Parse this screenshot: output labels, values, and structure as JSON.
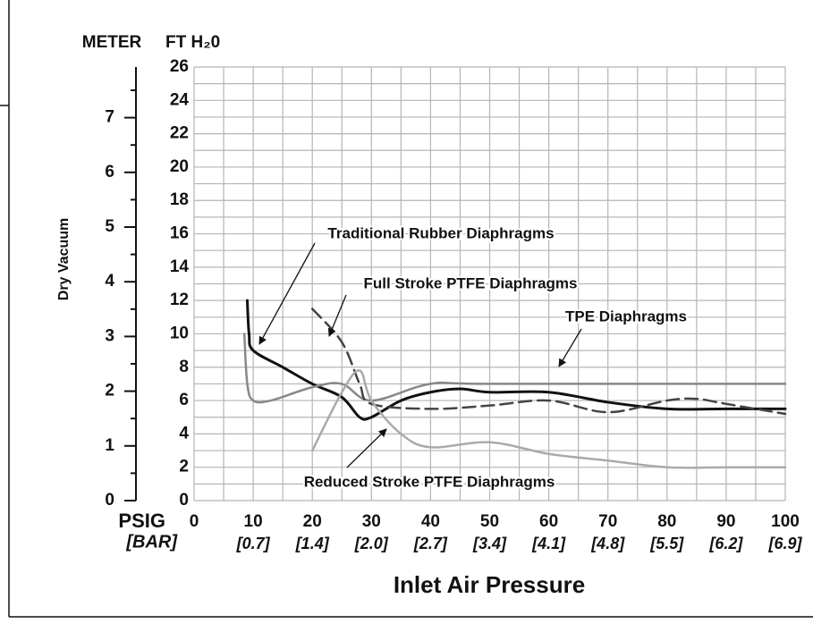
{
  "chart_data": {
    "type": "line",
    "y_label": "Dry Vacuum",
    "y_unit_label": "FT H₂0",
    "y2_unit_label": "METER",
    "x_label": "Inlet Air Pressure",
    "x_unit_label": "PSIG",
    "x_bar_unit_label": "[BAR]",
    "xlim": [
      0,
      100
    ],
    "xticks": [
      0,
      10,
      20,
      30,
      40,
      50,
      60,
      70,
      80,
      90,
      100
    ],
    "x_bar_labels": [
      null,
      "[0.7]",
      "[1.4]",
      "[2.0]",
      "[2.7]",
      "[3.4]",
      "[4.1]",
      "[4.8]",
      "[5.5]",
      "[6.2]",
      "[6.9]"
    ],
    "xminor_ticks": [
      5,
      15,
      25,
      35,
      45,
      55,
      65,
      75,
      85,
      95
    ],
    "ylim": [
      0,
      26
    ],
    "yticks": [
      0,
      2,
      4,
      6,
      8,
      10,
      12,
      14,
      16,
      18,
      20,
      22,
      24,
      26
    ],
    "yminor_ticks": [
      1,
      3,
      5,
      7,
      9,
      11,
      13,
      15,
      17,
      19,
      21,
      23,
      25
    ],
    "y2lim": [
      0,
      7.925
    ],
    "y2ticks": [
      0,
      1,
      2,
      3,
      4,
      5,
      6,
      7
    ],
    "y2minor_ticks": [
      0.5,
      1.5,
      2.5,
      3.5,
      4.5,
      5.5,
      6.5,
      7.5
    ],
    "grid": true,
    "series": [
      {
        "name": "Traditional Rubber Diaphragms",
        "color": "#111111",
        "width": 3,
        "dashed": false,
        "x": [
          9,
          9.3,
          10,
          15,
          20,
          25,
          28,
          30,
          35,
          40,
          45,
          50,
          60,
          70,
          80,
          90,
          100
        ],
        "values": [
          12,
          10,
          9,
          8,
          7,
          6.2,
          5,
          5,
          6,
          6.5,
          6.7,
          6.5,
          6.5,
          5.9,
          5.5,
          5.5,
          5.5
        ]
      },
      {
        "name": "TPE Diaphragms",
        "color": "#888888",
        "width": 2.5,
        "dashed": false,
        "x": [
          8.5,
          9,
          10,
          13,
          20,
          25,
          30,
          40,
          50,
          100
        ],
        "values": [
          10,
          7,
          6,
          6,
          6.8,
          7,
          6,
          7,
          7,
          7
        ]
      },
      {
        "name": "Full Stroke PTFE Diaphragms",
        "color": "#444444",
        "width": 2.5,
        "dashed": true,
        "x": [
          20,
          25,
          28,
          30,
          40,
          50,
          60,
          70,
          80,
          85,
          90,
          100
        ],
        "values": [
          11.5,
          9.5,
          7,
          5.8,
          5.5,
          5.7,
          6,
          5.3,
          6,
          6.1,
          5.8,
          5.2
        ]
      },
      {
        "name": "Reduced Stroke PTFE Diaphragms",
        "color": "#aaaaaa",
        "width": 2.5,
        "dashed": false,
        "x": [
          20,
          25,
          28,
          30,
          35,
          40,
          50,
          60,
          70,
          80,
          90,
          100
        ],
        "values": [
          3,
          6.5,
          7.8,
          6,
          4,
          3.2,
          3.5,
          2.8,
          2.4,
          2,
          2,
          2
        ]
      }
    ]
  }
}
